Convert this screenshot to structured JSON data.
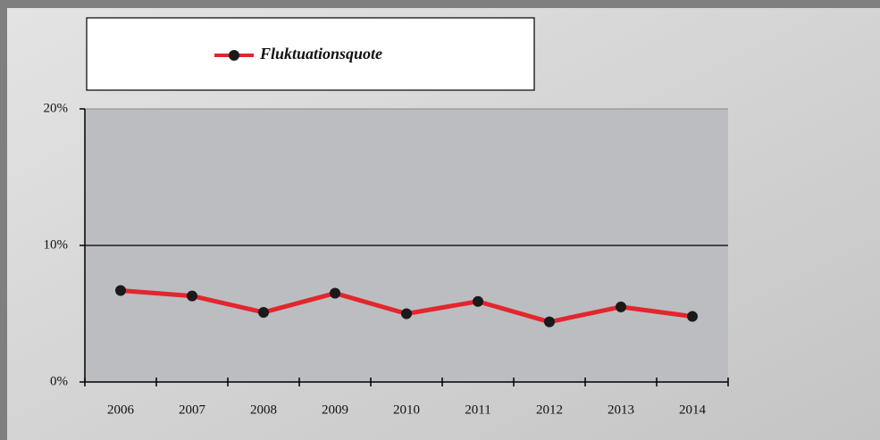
{
  "chart_data": {
    "type": "line",
    "categories": [
      "2006",
      "2007",
      "2008",
      "2009",
      "2010",
      "2011",
      "2012",
      "2013",
      "2014"
    ],
    "series": [
      {
        "name": "Fluktuationsquote",
        "color": "#e3262d",
        "marker_color": "#1a1a1a",
        "values": [
          6.7,
          6.3,
          5.1,
          6.5,
          5.0,
          5.9,
          4.4,
          5.5,
          4.8
        ]
      }
    ],
    "ylim": [
      0,
      20
    ],
    "yticks": [
      {
        "value": 0,
        "label": "0%"
      },
      {
        "value": 10,
        "label": "10%"
      },
      {
        "value": 20,
        "label": "20%"
      }
    ],
    "grid": true
  }
}
